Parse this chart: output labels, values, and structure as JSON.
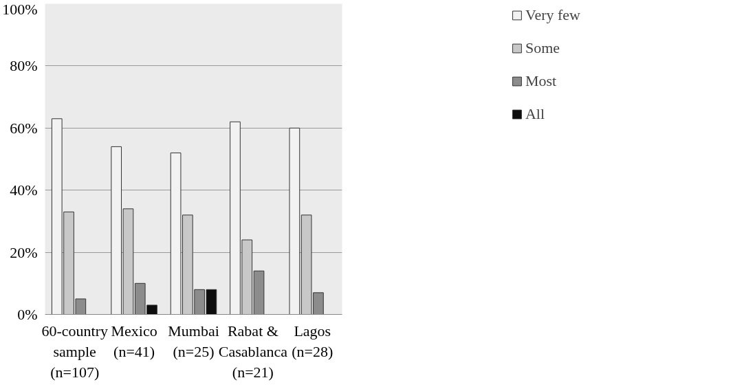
{
  "chart_data": {
    "type": "bar",
    "categories": [
      "60-country\nsample\n(n=107)",
      "Mexico\n(n=41)",
      "Mumbai\n(n=25)",
      "Rabat &\nCasablanca\n(n=21)",
      "Lagos\n(n=28)"
    ],
    "series": [
      {
        "name": "Very few",
        "color": "#f2f2f2",
        "values": [
          63,
          54,
          52,
          62,
          60
        ]
      },
      {
        "name": "Some",
        "color": "#c8c8c8",
        "values": [
          33,
          34,
          32,
          24,
          32
        ]
      },
      {
        "name": "Most",
        "color": "#8c8c8c",
        "values": [
          5,
          10,
          8,
          14,
          7
        ]
      },
      {
        "name": "All",
        "color": "#0d0d0d",
        "values": [
          null,
          3,
          8,
          null,
          null
        ]
      }
    ],
    "ylim": [
      0,
      100
    ],
    "yticks": [
      {
        "value": 0,
        "label": "0%"
      },
      {
        "value": 20,
        "label": "20%"
      },
      {
        "value": 40,
        "label": "40%"
      },
      {
        "value": 60,
        "label": "60%"
      },
      {
        "value": 80,
        "label": "80%"
      },
      {
        "value": 100,
        "label": "100%"
      }
    ],
    "grid": "y",
    "legend": "top right"
  }
}
